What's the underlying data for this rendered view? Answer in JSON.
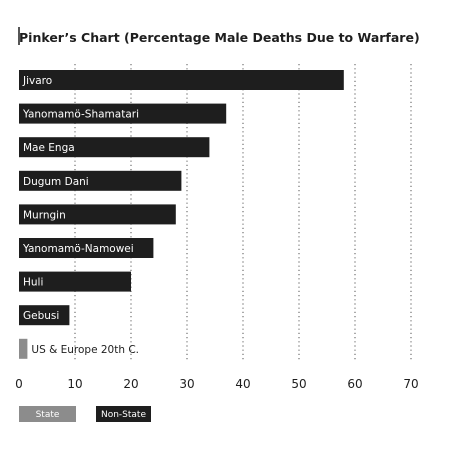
{
  "chart_data": {
    "type": "bar",
    "orientation": "horizontal",
    "title": "Pinker’s Chart (Percentage Male Deaths Due to Warfare)",
    "xlabel": "",
    "ylabel": "",
    "xlim": [
      0,
      70
    ],
    "xticks": [
      0,
      10,
      20,
      30,
      40,
      50,
      60,
      70
    ],
    "grid": "vertical-dotted",
    "legend_position": "bottom-left",
    "categories": [
      "Jivaro",
      "Yanomamö-Shamatari",
      "Mae Enga",
      "Dugum Dani",
      "Murngin",
      "Yanomamö-Namowei",
      "Huli",
      "Gebusi",
      "US & Europe 20th C."
    ],
    "values": [
      58,
      37,
      34,
      29,
      28,
      24,
      20,
      9,
      1.5
    ],
    "groups": [
      "Non-State",
      "Non-State",
      "Non-State",
      "Non-State",
      "Non-State",
      "Non-State",
      "Non-State",
      "Non-State",
      "State"
    ],
    "legend": [
      {
        "name": "State",
        "color": "#8c8c8c"
      },
      {
        "name": "Non-State",
        "color": "#1e1e1e"
      }
    ]
  }
}
